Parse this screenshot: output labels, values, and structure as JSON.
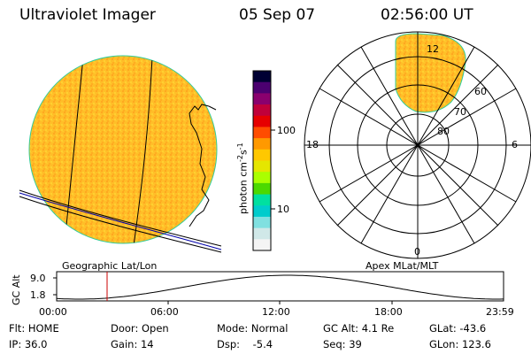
{
  "header": {
    "instrument": "Ultraviolet Imager",
    "date": "05 Sep 07",
    "time": "02:56:00 UT"
  },
  "left_panel": {
    "caption": "Geographic Lat/Lon"
  },
  "right_panel": {
    "caption": "Apex MLat/MLT",
    "mlt_labels": [
      "12",
      "18",
      "6",
      "0"
    ],
    "mlat_labels": [
      "60",
      "70",
      "80"
    ]
  },
  "colorbar": {
    "unit_label": "photon cm",
    "unit_exp1": "-2",
    "unit_s": "s",
    "unit_exp2": "-1",
    "ticks": [
      "100",
      "10"
    ],
    "scale": "log",
    "colors": [
      "#000033",
      "#4b0070",
      "#8a006e",
      "#c0003a",
      "#e60000",
      "#ff4d00",
      "#ff9900",
      "#ffc800",
      "#e5e600",
      "#aaff00",
      "#4cd900",
      "#00e0a0",
      "#00cccc",
      "#80e0e0",
      "#d0e8e8",
      "#f4f4f4"
    ]
  },
  "alt_plot": {
    "ylabel": "GC Alt",
    "yticks": [
      "9.0",
      "1.8"
    ],
    "xticks": [
      "00:00",
      "06:00",
      "12:00",
      "18:00",
      "23:59"
    ],
    "marker_color": "#cc0000"
  },
  "info": {
    "row1": [
      "Flt: HOME",
      "Door: Open",
      "Mode: Normal",
      "GC Alt: 4.1 Re",
      "GLat: -43.6"
    ],
    "row2": [
      "IP: 36.0",
      "Gain: 14",
      "Dsp:    -5.4",
      "Seq: 39",
      "GLon: 123.6"
    ]
  },
  "colors": {
    "image_fill": "#ffbe28",
    "image_edge": "#33cc99",
    "overlay": "#000000",
    "coast": "#0000aa"
  }
}
